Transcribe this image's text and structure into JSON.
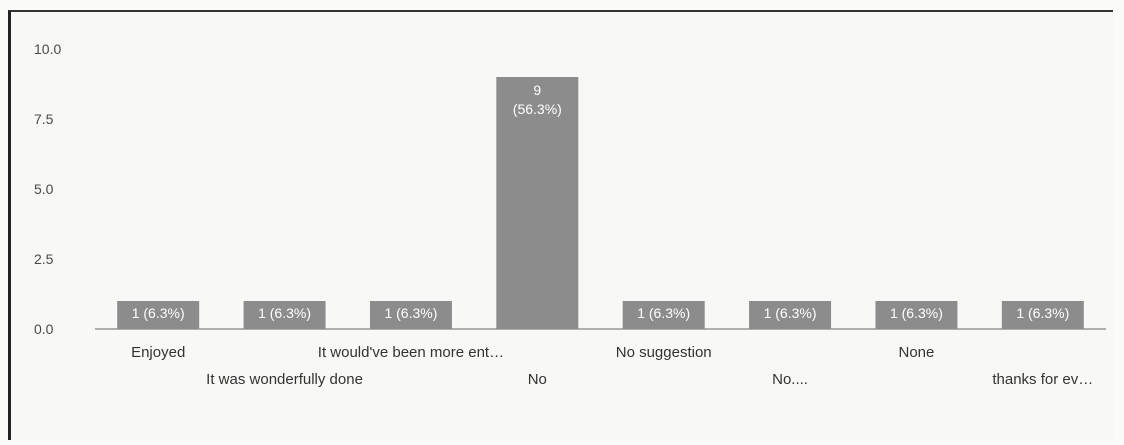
{
  "chart_data": {
    "type": "bar",
    "title": "",
    "xlabel": "",
    "ylabel": "",
    "ylim": [
      0,
      10
    ],
    "yticks": [
      "0.0",
      "2.5",
      "5.0",
      "7.5",
      "10.0"
    ],
    "categories": [
      "Enjoyed",
      "It was wonderfully done",
      "It would've been more ent…",
      "No",
      "No suggestion",
      "No....",
      "None",
      "thanks for ev…"
    ],
    "values": [
      1,
      1,
      1,
      9,
      1,
      1,
      1,
      1
    ],
    "data_labels": [
      [
        "1 (6.3%)"
      ],
      [
        "1 (6.3%)"
      ],
      [
        "1 (6.3%)"
      ],
      [
        "9",
        "(56.3%)"
      ],
      [
        "1 (6.3%)"
      ],
      [
        "1 (6.3%)"
      ],
      [
        "1 (6.3%)"
      ],
      [
        "1 (6.3%)"
      ]
    ],
    "bar_color": "#8c8c8c",
    "grid": false,
    "legend": "none"
  }
}
